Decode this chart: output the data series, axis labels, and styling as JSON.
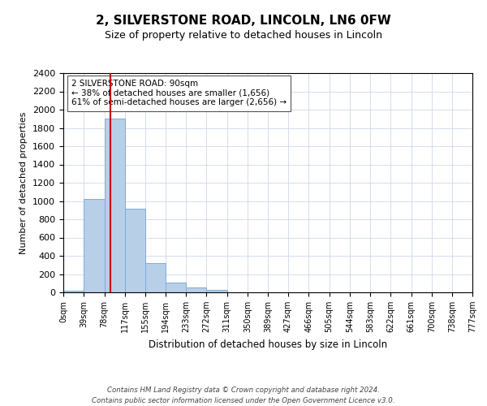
{
  "title": "2, SILVERSTONE ROAD, LINCOLN, LN6 0FW",
  "subtitle": "Size of property relative to detached houses in Lincoln",
  "xlabel": "Distribution of detached houses by size in Lincoln",
  "ylabel": "Number of detached properties",
  "bin_edges": [
    0,
    39,
    78,
    117,
    155,
    194,
    233,
    272,
    311,
    350,
    389,
    427,
    466,
    505,
    544,
    583,
    622,
    661,
    700,
    738,
    777
  ],
  "bar_heights": [
    20,
    1020,
    1900,
    920,
    320,
    105,
    50,
    30,
    0,
    0,
    0,
    0,
    0,
    0,
    0,
    0,
    0,
    0,
    0,
    0
  ],
  "bar_color": "#b8cfe8",
  "bar_edge_color": "#7aaed6",
  "property_size": 90,
  "vline_color": "#cc0000",
  "ylim": [
    0,
    2400
  ],
  "yticks": [
    0,
    200,
    400,
    600,
    800,
    1000,
    1200,
    1400,
    1600,
    1800,
    2000,
    2200,
    2400
  ],
  "annotation_text": "2 SILVERSTONE ROAD: 90sqm\n← 38% of detached houses are smaller (1,656)\n61% of semi-detached houses are larger (2,656) →",
  "annotation_box_color": "#ffffff",
  "annotation_box_edge": "#555555",
  "grid_color": "#d0d8e8",
  "background_color": "#ffffff",
  "footer_line1": "Contains HM Land Registry data © Crown copyright and database right 2024.",
  "footer_line2": "Contains public sector information licensed under the Open Government Licence v3.0.",
  "tick_labels": [
    "0sqm",
    "39sqm",
    "78sqm",
    "117sqm",
    "155sqm",
    "194sqm",
    "233sqm",
    "272sqm",
    "311sqm",
    "350sqm",
    "389sqm",
    "427sqm",
    "466sqm",
    "505sqm",
    "544sqm",
    "583sqm",
    "622sqm",
    "661sqm",
    "700sqm",
    "738sqm",
    "777sqm"
  ]
}
